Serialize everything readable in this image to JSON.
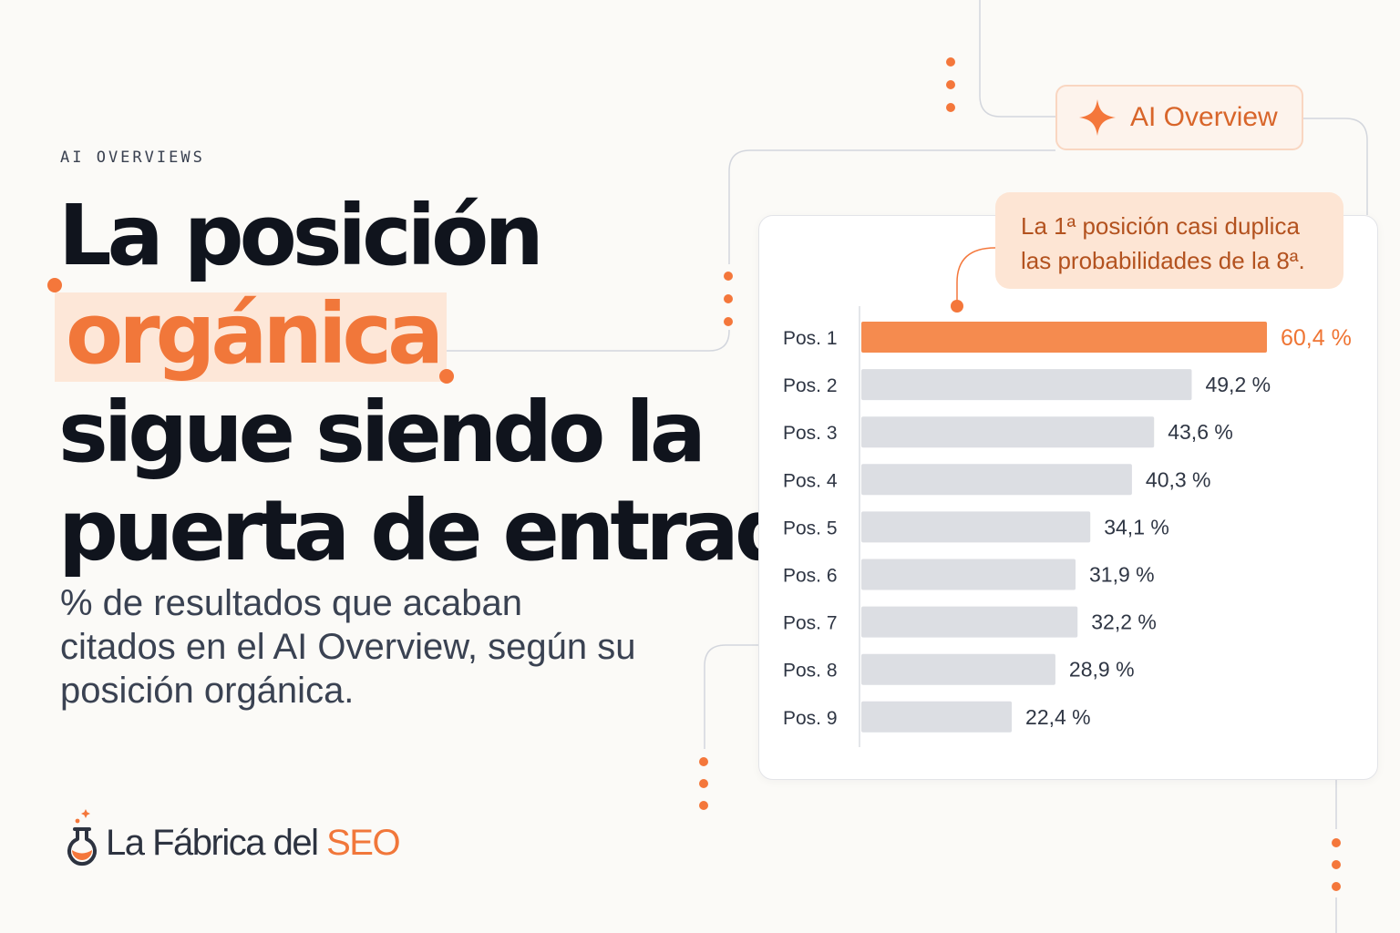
{
  "eyebrow": "AI OVERVIEWS",
  "headline": {
    "line1": "La posición",
    "highlight": "orgánica",
    "line3": "sigue siendo la",
    "line4": "puerta de entrada"
  },
  "subtitle": "% de resultados que acaban citados en el AI Overview, según su posición orgánica.",
  "badge": {
    "label": "AI Overview",
    "icon": "sparkle-icon"
  },
  "callout": "La 1ª posición casi duplica las probabilidades de la 8ª.",
  "logo": {
    "name": "La Fábrica del ",
    "accent": "SEO",
    "icon": "flask-icon"
  },
  "colors": {
    "accent": "#f58b4f",
    "accent_text": "#ef7534",
    "bar": "#dcdee3",
    "background": "#fbfaf7"
  },
  "chart_data": {
    "type": "bar",
    "orientation": "horizontal",
    "categories": [
      "Pos. 1",
      "Pos. 2",
      "Pos. 3",
      "Pos. 4",
      "Pos. 5",
      "Pos. 6",
      "Pos. 7",
      "Pos. 8",
      "Pos. 9"
    ],
    "values": [
      60.4,
      49.2,
      43.6,
      40.3,
      34.1,
      31.9,
      32.2,
      28.9,
      22.4
    ],
    "labels": [
      "60,4 %",
      "49,2 %",
      "43,6 %",
      "40,3 %",
      "34,1 %",
      "31,9 %",
      "32,2 %",
      "28,9 %",
      "22,4 %"
    ],
    "highlight_index": 0,
    "unit": "%",
    "xlim": [
      0,
      60.4
    ],
    "grid": false,
    "legend": "none"
  }
}
